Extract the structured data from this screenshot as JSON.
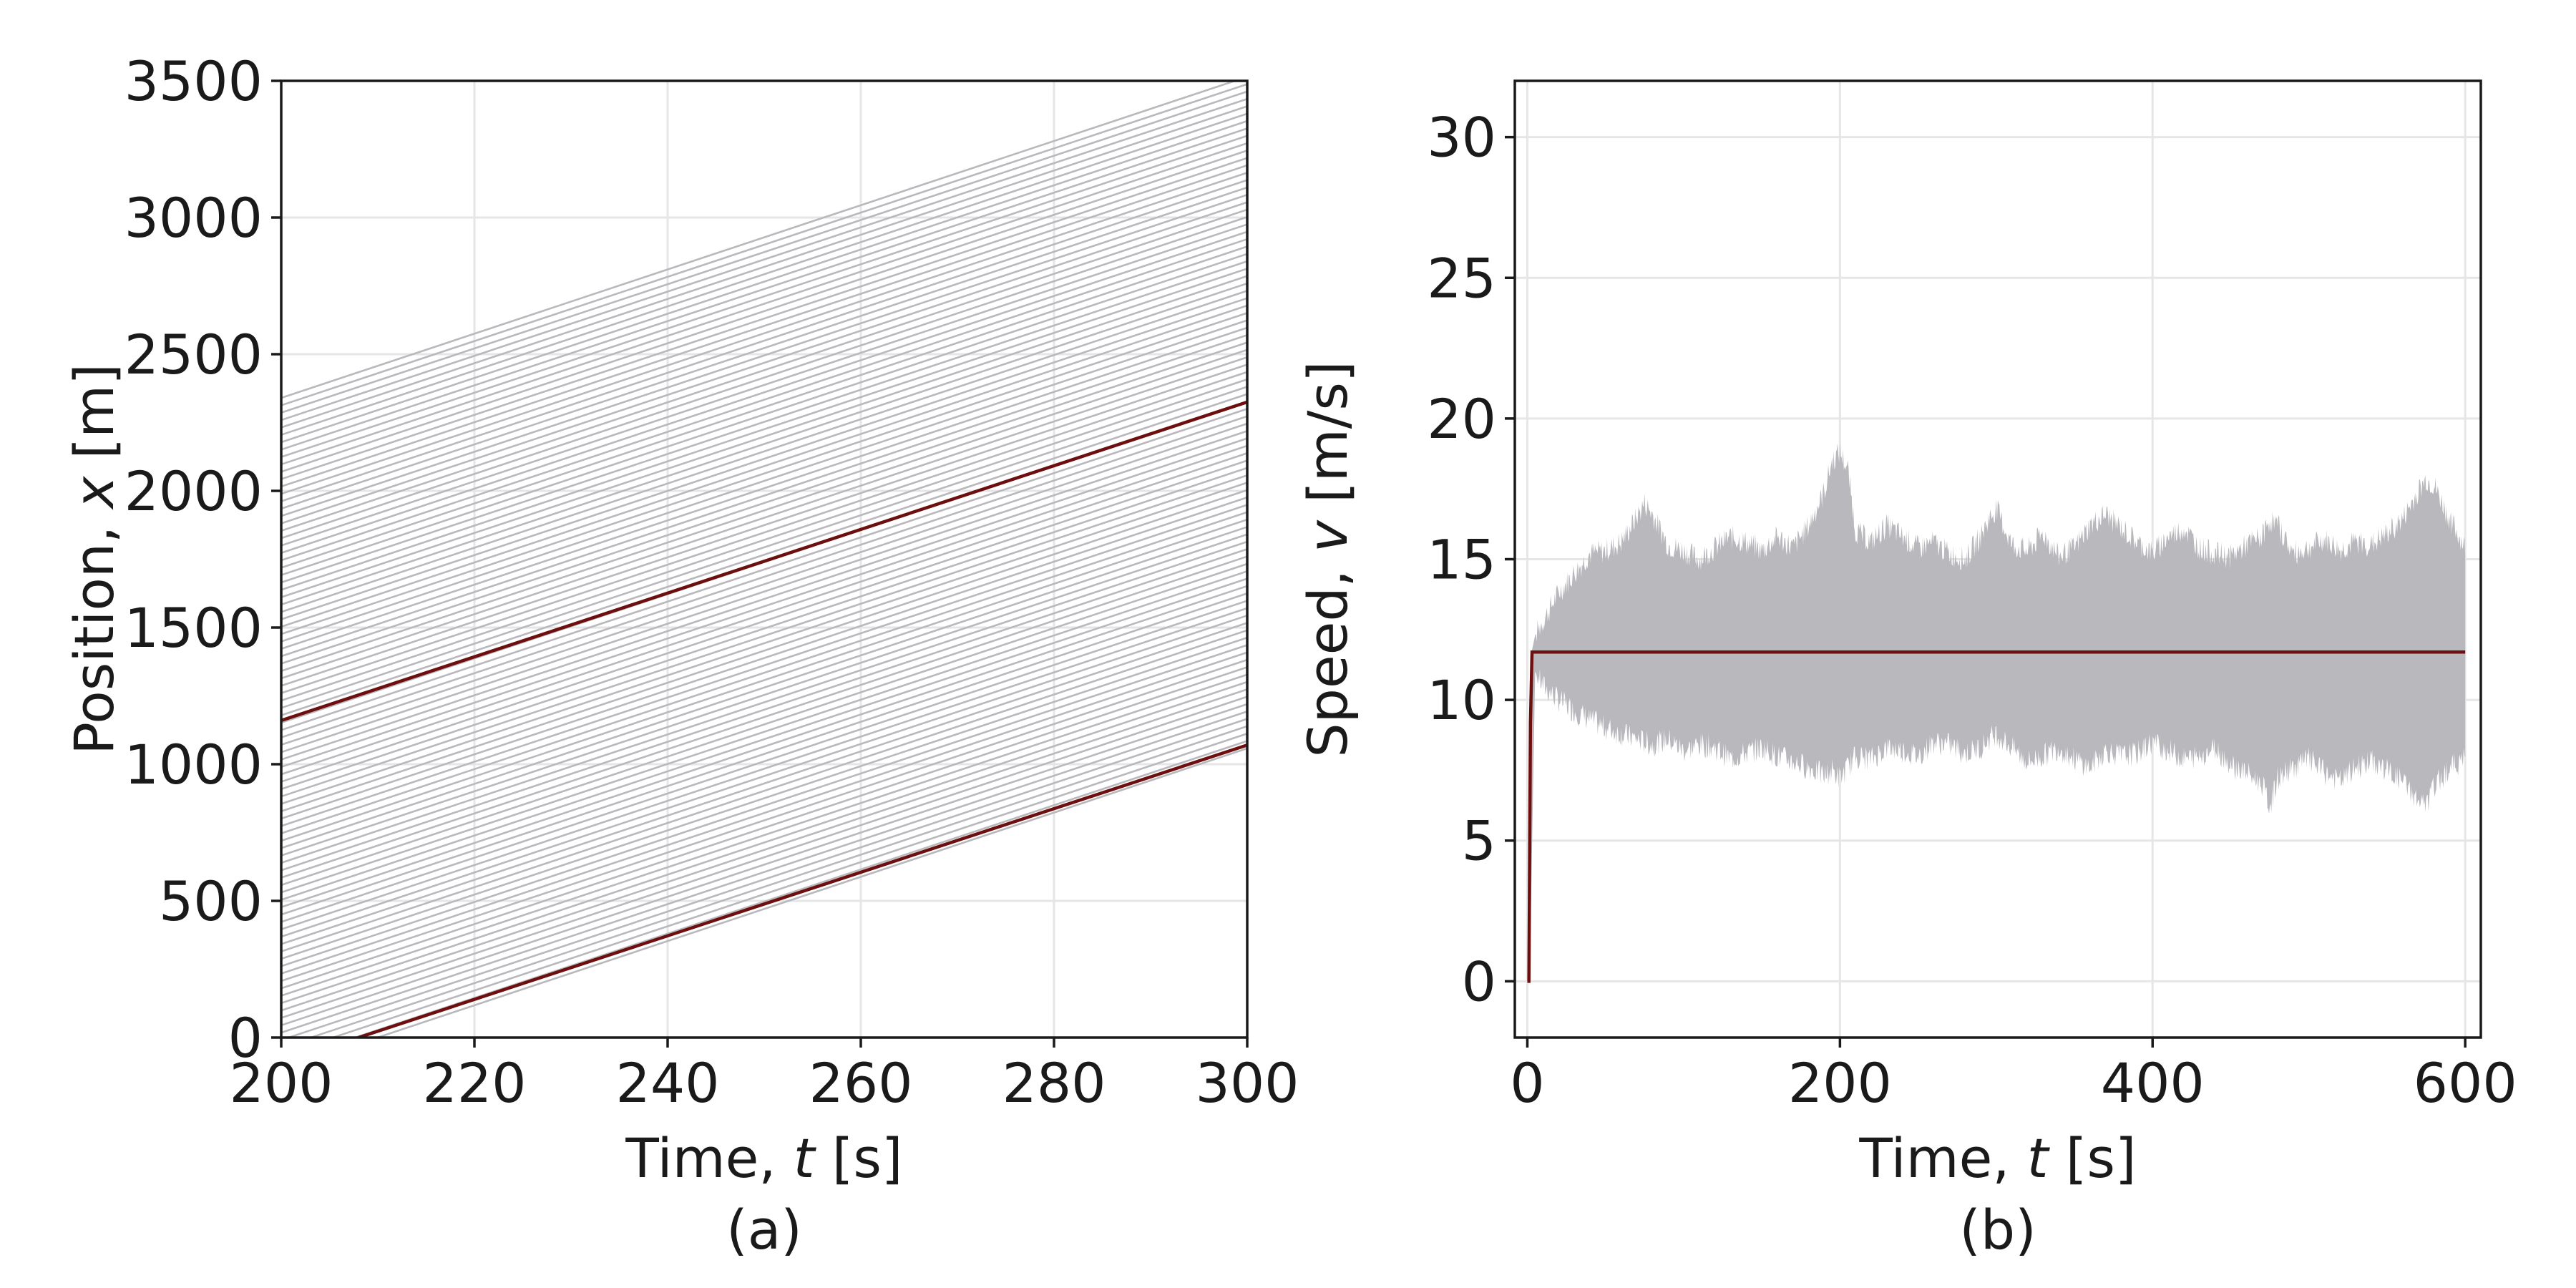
{
  "colors": {
    "background_vehicles": "#b8b8bd",
    "highlight_vehicle": "#6e0f0f",
    "grid": "#e6e6e6",
    "axis": "#1a1a1a"
  },
  "chart_data": [
    {
      "id": "a",
      "type": "line",
      "caption": "(a)",
      "xlabel_prefix": "Time, ",
      "xlabel_var": "t",
      "xlabel_unit": " [s]",
      "ylabel_prefix": "Position, ",
      "ylabel_var": "x",
      "ylabel_unit": " [m]",
      "xlim": [
        200,
        300
      ],
      "ylim": [
        0,
        3500
      ],
      "xticks": [
        200,
        220,
        240,
        260,
        280,
        300
      ],
      "yticks": [
        0,
        500,
        1000,
        1500,
        2000,
        2500,
        3000,
        3500
      ],
      "grid": true,
      "background_trajectories": {
        "count": 92,
        "speed_mps": 11.75,
        "first_position_at_t200": 2340,
        "last_position_at_t200": -125,
        "vehicle_gap_m": 27
      },
      "series": [
        {
          "x": [
            200,
            300
          ],
          "y": [
            1160,
            2325
          ]
        },
        {
          "x": [
            208,
            300
          ],
          "y": [
            0,
            1070
          ]
        }
      ]
    },
    {
      "id": "b",
      "type": "area",
      "caption": "(b)",
      "xlabel_prefix": "Time, ",
      "xlabel_var": "t",
      "xlabel_unit": " [s]",
      "ylabel_prefix": "Speed, ",
      "ylabel_var": "v",
      "ylabel_unit": " [m/s]",
      "xlim": [
        -8,
        610
      ],
      "ylim": [
        -2,
        32
      ],
      "xticks": [
        0,
        200,
        400,
        600
      ],
      "yticks": [
        0,
        5,
        10,
        15,
        20,
        25,
        30
      ],
      "grid": true,
      "speed_band": {
        "t": [
          0,
          1,
          2,
          5,
          10,
          20,
          30,
          40,
          50,
          60,
          70,
          75,
          80,
          90,
          100,
          110,
          120,
          130,
          140,
          150,
          160,
          170,
          180,
          190,
          195,
          200,
          205,
          210,
          220,
          230,
          240,
          250,
          260,
          270,
          280,
          290,
          295,
          300,
          310,
          320,
          330,
          340,
          350,
          360,
          370,
          380,
          390,
          400,
          410,
          420,
          430,
          440,
          450,
          460,
          470,
          475,
          480,
          490,
          500,
          510,
          520,
          530,
          540,
          550,
          560,
          570,
          575,
          580,
          590,
          600
        ],
        "upper": [
          0,
          8,
          11.5,
          12.3,
          12.8,
          13.8,
          14.5,
          15.2,
          15.3,
          15.6,
          16.5,
          17.0,
          16.6,
          15.5,
          15.3,
          15.0,
          15.4,
          15.8,
          15.6,
          15.3,
          15.8,
          15.4,
          16.2,
          17.4,
          18.5,
          18.8,
          18.2,
          16.0,
          15.6,
          16.2,
          15.8,
          15.4,
          15.6,
          15.2,
          15.0,
          15.8,
          16.4,
          16.8,
          15.5,
          15.3,
          15.9,
          15.1,
          15.4,
          16.2,
          16.6,
          16.1,
          15.6,
          15.2,
          15.8,
          16.1,
          15.4,
          15.2,
          15.1,
          15.5,
          15.8,
          16.4,
          16.2,
          15.2,
          15.4,
          15.7,
          15.3,
          15.6,
          15.5,
          15.9,
          16.4,
          17.4,
          17.8,
          17.6,
          16.4,
          15.4
        ],
        "lower": [
          0,
          0,
          1.5,
          11.0,
          10.5,
          10.0,
          9.6,
          9.3,
          9.0,
          8.8,
          8.6,
          8.5,
          8.4,
          8.6,
          8.2,
          8.4,
          8.3,
          7.9,
          8.1,
          8.3,
          8.0,
          7.8,
          7.6,
          7.3,
          7.5,
          7.2,
          7.6,
          8.0,
          7.9,
          8.3,
          8.2,
          8.0,
          8.5,
          8.4,
          8.1,
          8.3,
          8.6,
          8.8,
          8.3,
          7.8,
          8.0,
          8.3,
          7.9,
          7.6,
          8.2,
          8.0,
          8.1,
          8.5,
          8.2,
          7.9,
          8.0,
          8.3,
          7.7,
          7.4,
          7.0,
          6.2,
          7.2,
          7.6,
          7.9,
          7.4,
          7.1,
          7.6,
          7.8,
          7.5,
          7.1,
          6.4,
          6.2,
          6.9,
          7.6,
          7.9
        ]
      },
      "series": [
        {
          "x": [
            0,
            1,
            2,
            3,
            5,
            600
          ],
          "y": [
            0,
            0,
            9.2,
            11.7,
            11.7,
            11.7
          ]
        }
      ]
    }
  ]
}
